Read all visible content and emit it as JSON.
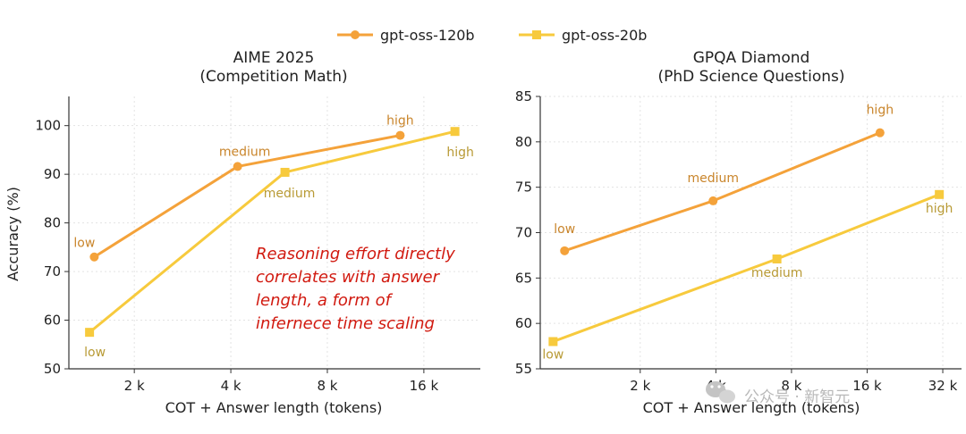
{
  "legend": [
    {
      "name": "gpt-oss-120b",
      "color": "#f4a23a",
      "marker": "circle"
    },
    {
      "name": "gpt-oss-20b",
      "color": "#f7ca3d",
      "marker": "square"
    }
  ],
  "annotation_note": [
    "Reasoning effort directly",
    "correlates with answer",
    "length, a form of",
    "infernece time scaling"
  ],
  "watermark": "公众号 · 新智元",
  "colors": {
    "series_120b": "#f4a23a",
    "series_20b": "#f7ca3d",
    "label_120b": "#c9852b",
    "label_20b": "#b89a35",
    "note": "#d11a10"
  },
  "chart_data": [
    {
      "type": "line",
      "title": "AIME 2025",
      "subtitle": "(Competition Math)",
      "xlabel": "COT + Answer length (tokens)",
      "ylabel": "Accuracy (%)",
      "xscale": "log2",
      "xlim": [
        1250,
        24000
      ],
      "xticks": [
        2000,
        4000,
        8000,
        16000
      ],
      "xtick_labels": [
        "2 k",
        "4 k",
        "8 k",
        "16 k"
      ],
      "ylim": [
        50,
        106
      ],
      "yticks": [
        50,
        60,
        70,
        80,
        90,
        100
      ],
      "grid": true,
      "series": [
        {
          "name": "gpt-oss-120b",
          "points": [
            {
              "x": 1500,
              "y": 73,
              "label": "low"
            },
            {
              "x": 4200,
              "y": 91.6,
              "label": "medium"
            },
            {
              "x": 13500,
              "y": 98,
              "label": "high"
            }
          ]
        },
        {
          "name": "gpt-oss-20b",
          "points": [
            {
              "x": 1450,
              "y": 57.5,
              "label": "low"
            },
            {
              "x": 5900,
              "y": 90.4,
              "label": "medium"
            },
            {
              "x": 20000,
              "y": 98.8,
              "label": "high"
            }
          ]
        }
      ]
    },
    {
      "type": "line",
      "title": "GPQA Diamond",
      "subtitle": "(PhD Science Questions)",
      "xlabel": "COT + Answer length (tokens)",
      "ylabel": "",
      "xscale": "log2",
      "xlim": [
        800,
        38000
      ],
      "xticks": [
        2000,
        4000,
        8000,
        16000,
        32000
      ],
      "xtick_labels": [
        "2 k",
        "4 k",
        "8 k",
        "16 k",
        "32 k"
      ],
      "ylim": [
        55,
        85
      ],
      "yticks": [
        55,
        60,
        65,
        70,
        75,
        80,
        85
      ],
      "grid": true,
      "series": [
        {
          "name": "gpt-oss-120b",
          "points": [
            {
              "x": 1000,
              "y": 68,
              "label": "low"
            },
            {
              "x": 3900,
              "y": 73.5,
              "label": "medium"
            },
            {
              "x": 18000,
              "y": 81,
              "label": "high"
            }
          ]
        },
        {
          "name": "gpt-oss-20b",
          "points": [
            {
              "x": 900,
              "y": 58,
              "label": "low"
            },
            {
              "x": 7000,
              "y": 67.1,
              "label": "medium"
            },
            {
              "x": 31000,
              "y": 74.2,
              "label": "high"
            }
          ]
        }
      ]
    }
  ]
}
